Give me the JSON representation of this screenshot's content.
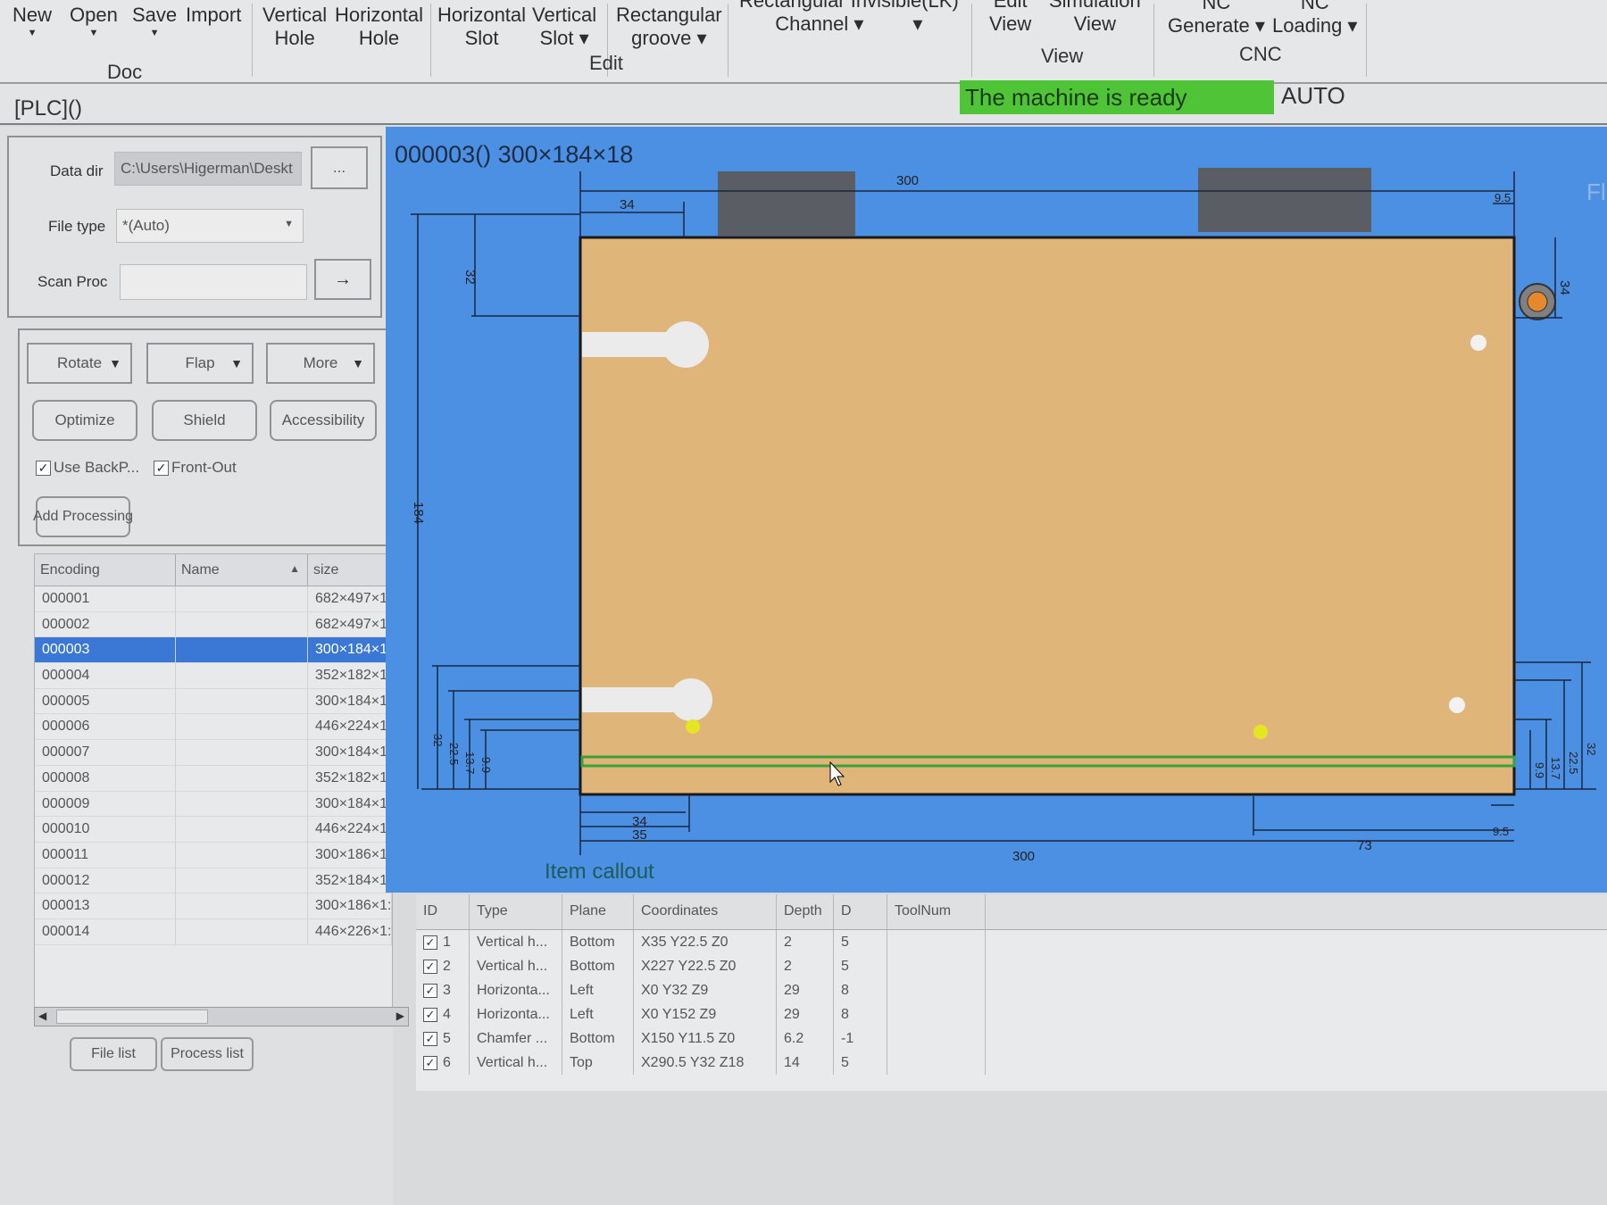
{
  "ribbon": {
    "doc": {
      "group": "Doc",
      "items": [
        "New",
        "Open",
        "Save",
        "Import"
      ]
    },
    "edit": {
      "group": "Edit",
      "items": [
        {
          "l1": "Vertical",
          "l2": "Hole"
        },
        {
          "l1": "Horizontal",
          "l2": "Hole"
        },
        {
          "l1": "Horizontal",
          "l2": "Slot"
        },
        {
          "l1": "Vertical",
          "l2": "Slot"
        },
        {
          "l1": "Rectangular",
          "l2": "groove"
        },
        {
          "l1": "Rectangular Invisible(LK)",
          "l2": "Channel"
        }
      ]
    },
    "view": {
      "group": "View",
      "items": [
        {
          "l1": "Edit",
          "l2": "View"
        },
        {
          "l1": "Simulation",
          "l2": "View"
        }
      ]
    },
    "cnc": {
      "group": "CNC",
      "items": [
        {
          "l1": "NC",
          "l2": "Generate"
        },
        {
          "l1": "NC",
          "l2": "Loading"
        }
      ]
    }
  },
  "status": {
    "plc": "[PLC]()",
    "machine": "The machine is ready",
    "mode": "AUTO",
    "ready_color": "#4fc437"
  },
  "import_panel": {
    "data_dir_label": "Data dir",
    "data_dir_value": "C:\\Users\\Higerman\\Deskt",
    "browse": "...",
    "file_type_label": "File type",
    "file_type_value": "*(Auto)",
    "scan_label": "Scan Proc",
    "scan_value": "",
    "go": "→"
  },
  "actions": {
    "rotate": "Rotate",
    "flap": "Flap",
    "more": "More",
    "optimize": "Optimize",
    "shield": "Shield",
    "accessibility": "Accessibility",
    "use_back": "Use BackP...",
    "front_out": "Front-Out",
    "add_processing": "Add Processing"
  },
  "file_list": {
    "headers": [
      "Encoding",
      "Name",
      "size"
    ],
    "selected": "000003",
    "rows": [
      [
        "000001",
        "",
        "682×497×1:"
      ],
      [
        "000002",
        "",
        "682×497×1:"
      ],
      [
        "000003",
        "",
        "300×184×1:"
      ],
      [
        "000004",
        "",
        "352×182×1:"
      ],
      [
        "000005",
        "",
        "300×184×1:"
      ],
      [
        "000006",
        "",
        "446×224×1:"
      ],
      [
        "000007",
        "",
        "300×184×1:"
      ],
      [
        "000008",
        "",
        "352×182×1:"
      ],
      [
        "000009",
        "",
        "300×184×1:"
      ],
      [
        "000010",
        "",
        "446×224×1:"
      ],
      [
        "000011",
        "",
        "300×186×1:"
      ],
      [
        "000012",
        "",
        "352×184×1:"
      ],
      [
        "000013",
        "",
        "300×186×1:"
      ],
      [
        "000014",
        "",
        "446×226×1:"
      ]
    ]
  },
  "bottom_tabs": [
    "File list",
    "Process list"
  ],
  "drawing": {
    "title": "000003() 300×184×18",
    "callout": "Item callout",
    "corner_label": "Fl",
    "dims": {
      "top_width": "300",
      "top_34": "34",
      "right_9_5": "9.5",
      "right_34": "34",
      "left_32": "32",
      "left_184": "184",
      "left_bottom": [
        "32",
        "22.5",
        "13.7",
        "9.9"
      ],
      "bottom_34": "34",
      "bottom_35": "35",
      "bottom_width": "300",
      "bottom_73": "73",
      "bottom_9_5": "9.5",
      "right_bottom": [
        "32",
        "22.5",
        "13.7",
        "9.9"
      ]
    },
    "colors": {
      "background": "#4b90e2",
      "panel": "#e0b57a",
      "groove": "#3aa23a"
    }
  },
  "process_table": {
    "headers": [
      "ID",
      "Type",
      "Plane",
      "Coordinates",
      "Depth",
      "D",
      "ToolNum"
    ],
    "rows": [
      [
        "1",
        "Vertical h...",
        "Bottom",
        "X35 Y22.5 Z0",
        "2",
        "5",
        ""
      ],
      [
        "2",
        "Vertical h...",
        "Bottom",
        "X227 Y22.5 Z0",
        "2",
        "5",
        ""
      ],
      [
        "3",
        "Horizonta...",
        "Left",
        "X0 Y32 Z9",
        "29",
        "8",
        ""
      ],
      [
        "4",
        "Horizonta...",
        "Left",
        "X0 Y152 Z9",
        "29",
        "8",
        ""
      ],
      [
        "5",
        "Chamfer ...",
        "Bottom",
        "X150 Y11.5 Z0",
        "6.2",
        "-1",
        ""
      ],
      [
        "6",
        "Vertical h...",
        "Top",
        "X290.5 Y32 Z18",
        "14",
        "5",
        ""
      ]
    ]
  }
}
